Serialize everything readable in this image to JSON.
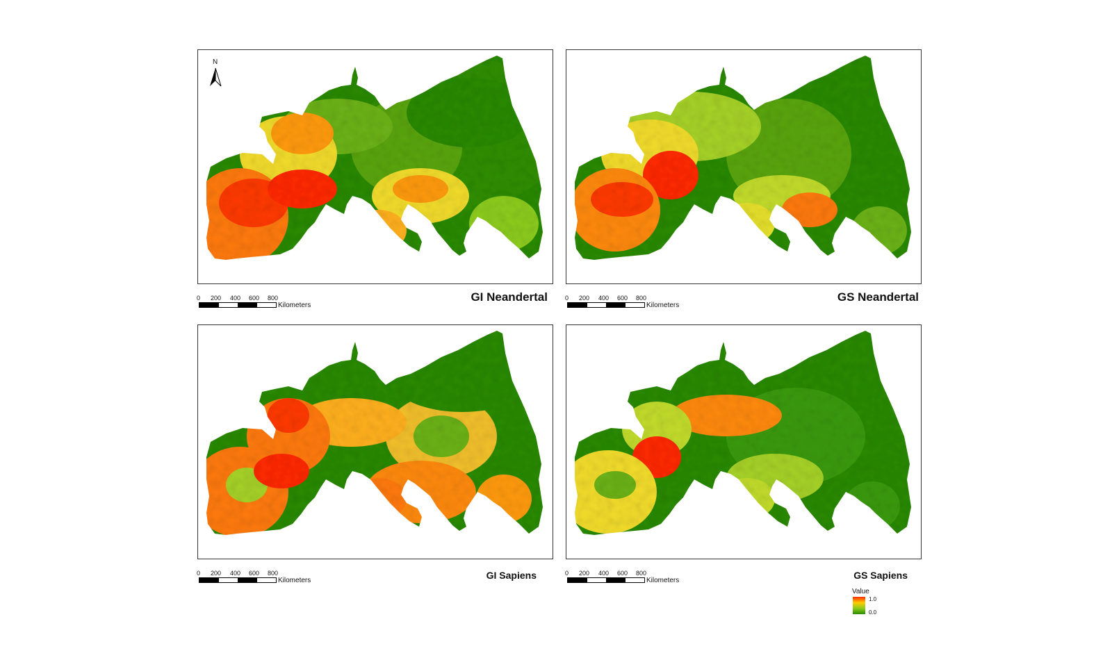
{
  "panels": [
    {
      "title": "GI Neandertal"
    },
    {
      "title": "GS Neandertal"
    },
    {
      "title": "GI Sapiens"
    },
    {
      "title": "GS Sapiens"
    }
  ],
  "scale_bar": {
    "ticks": [
      "0",
      "200",
      "400",
      "600",
      "800"
    ],
    "unit": "Kilometers"
  },
  "north_arrow": {
    "label": "N",
    "icon": "north-arrow-icon"
  },
  "legend": {
    "title": "Value",
    "high": "1.0",
    "low": "0.0",
    "ramp_colors": [
      "#ff2a00",
      "#ffcc00",
      "#8ccc1c",
      "#2a8a00"
    ]
  },
  "colors": {
    "high": "#ff2a00",
    "mid_high": "#ff9a10",
    "mid": "#f2dc2c",
    "mid_low": "#a6d227",
    "low": "#3a9a0a",
    "lowest": "#1f7a00"
  }
}
